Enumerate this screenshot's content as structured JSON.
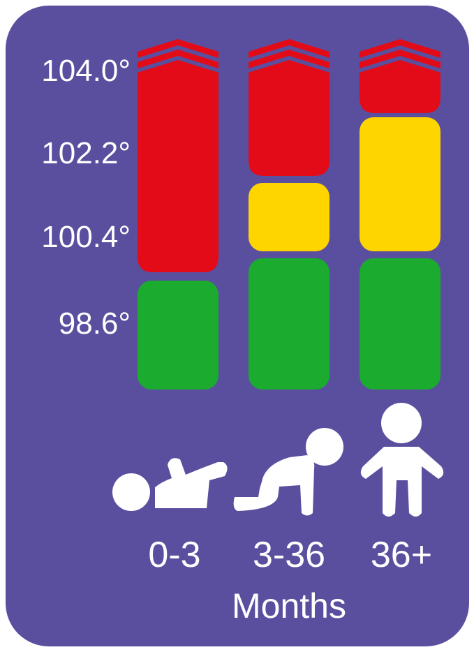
{
  "colors": {
    "background": "#5a4f9f",
    "red": "#e30b17",
    "yellow": "#ffd500",
    "green": "#1aab2f",
    "icon": "#ffffff"
  },
  "chart_data": {
    "type": "bar",
    "title": "",
    "xlabel": "Months",
    "ylabel": "",
    "y_ticks": [
      "104.0°",
      "102.2°",
      "100.4°",
      "98.6°"
    ],
    "categories": [
      "0-3",
      "3-36",
      "36+"
    ],
    "category_icons": [
      "baby-lying-icon",
      "baby-crawling-icon",
      "child-standing-icon"
    ],
    "top_arrows": "chevron-up-icon (open-ended above 104.0°)",
    "zones": [
      [
        {
          "color": "green",
          "from": 98.6,
          "to": 100.4
        },
        {
          "color": "red",
          "from": 100.4,
          "to": 104.0
        }
      ],
      [
        {
          "color": "green",
          "from": 98.6,
          "to": 100.4
        },
        {
          "color": "yellow",
          "from": 100.4,
          "to": 102.2
        },
        {
          "color": "red",
          "from": 102.2,
          "to": 104.0
        }
      ],
      [
        {
          "color": "green",
          "from": 98.6,
          "to": 100.4
        },
        {
          "color": "yellow",
          "from": 100.4,
          "to": 104.0
        },
        {
          "color": "red",
          "from": 104.0,
          "to": 104.0
        }
      ]
    ]
  }
}
